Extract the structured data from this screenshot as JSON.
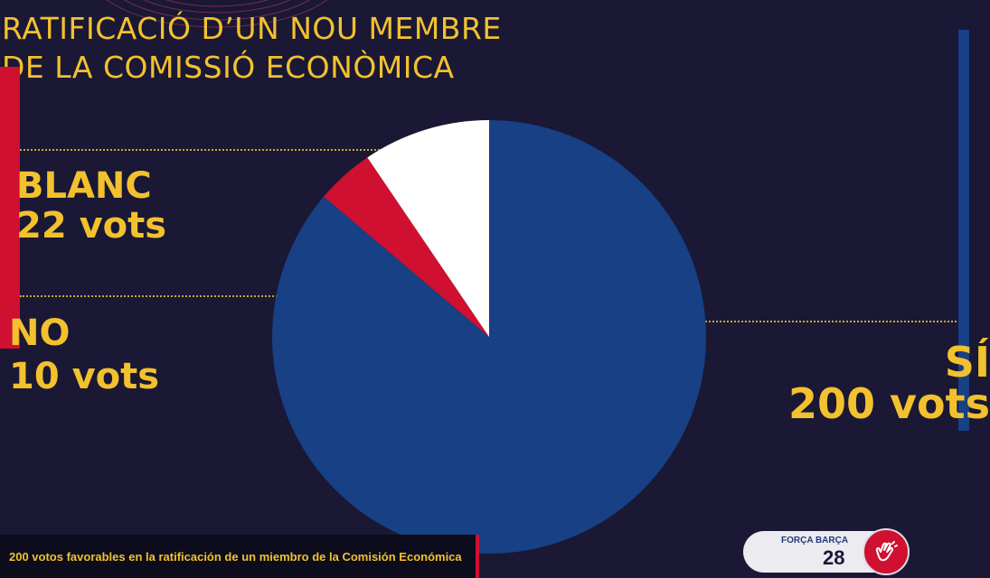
{
  "title": {
    "line1": "RATIFICACIÓ D’UN NOU MEMBRE",
    "line2": "DE LA COMISSIÓ ECONÒMICA"
  },
  "chart_data": {
    "type": "pie",
    "title": "RATIFICACIÓ D’UN NOU MEMBRE DE LA COMISSIÓ ECONÒMICA",
    "slices": [
      {
        "name": "SÍ",
        "value": 200,
        "label": "200 vots",
        "color": "#174085"
      },
      {
        "name": "NO",
        "value": 10,
        "label": "10 vots",
        "color": "#cf1030"
      },
      {
        "name": "BLANC",
        "value": 22,
        "label": "22 vots",
        "color": "#ffffff"
      }
    ]
  },
  "ticker": {
    "text": "200 votos favorables en la ratificación de un miembro de la Comisión Económica"
  },
  "widget": {
    "title": "FORÇA BARÇA",
    "count": "28",
    "icon": "clap-hands-icon"
  }
}
